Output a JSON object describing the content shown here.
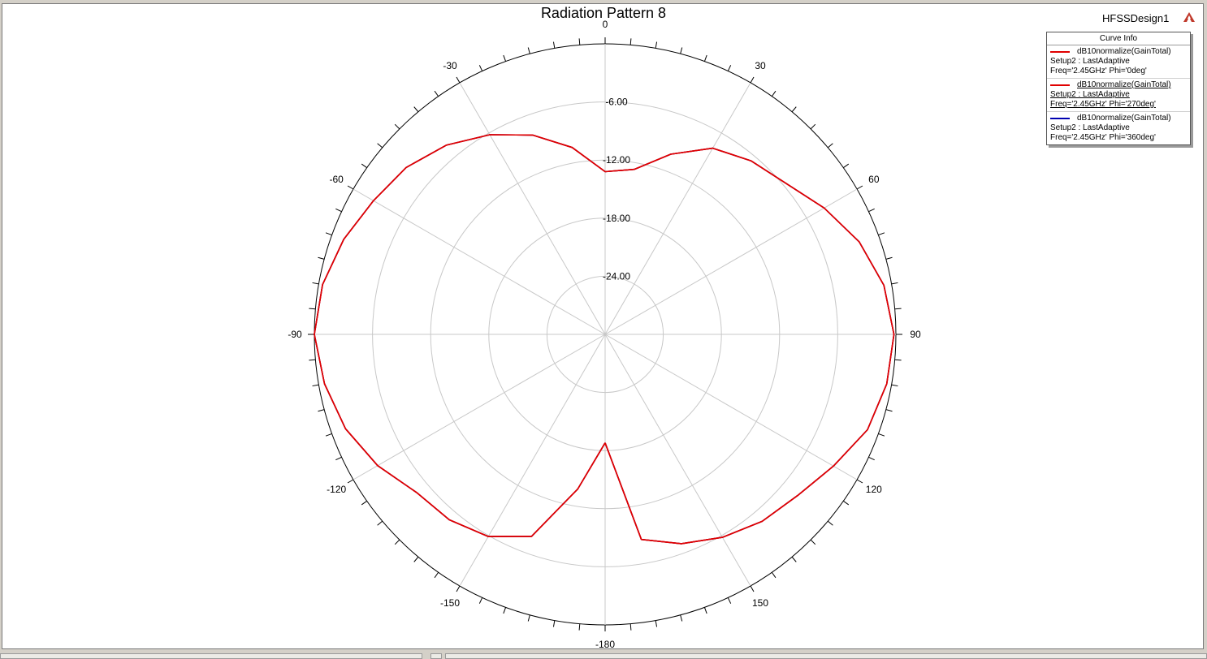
{
  "window": {
    "design_name": "HFSSDesign1"
  },
  "legend": {
    "title": "Curve Info",
    "entries": [
      {
        "line1": "dB10normalize(GainTotal)",
        "line2": "Setup2 : LastAdaptive",
        "line3": "Freq='2.45GHz' Phi='0deg'",
        "color": "#e00000"
      },
      {
        "line1": "dB10normalize(GainTotal)",
        "line2": "Setup2 : LastAdaptive",
        "line3": "Freq='2.45GHz' Phi='270deg'",
        "color": "#e00000"
      },
      {
        "line1": "dB10normalize(GainTotal)",
        "line2": "Setup2 : LastAdaptive",
        "line3": "Freq='2.45GHz' Phi='360deg'",
        "color": "#0000b0"
      }
    ]
  },
  "chart_data": {
    "type": "polar-line",
    "title": "Radiation Pattern 8",
    "radial_range": [
      -30,
      0
    ],
    "radial_ticks": [
      -24,
      -18,
      -12,
      -6,
      0
    ],
    "radial_tick_labels": [
      "-24.00",
      "-18.00",
      "-12.00",
      "-6.00"
    ],
    "angle_labels": [
      "0",
      "30",
      "60",
      "90",
      "120",
      "150",
      "-180",
      "-150",
      "-120",
      "-90",
      "-60",
      "-30"
    ],
    "grid": true,
    "legend_position": "top-right",
    "theta_deg": [
      -180,
      -170,
      -160,
      -150,
      -140,
      -130,
      -120,
      -110,
      -100,
      -90,
      -80,
      -70,
      -60,
      -50,
      -40,
      -30,
      -20,
      -10,
      0,
      10,
      20,
      30,
      40,
      50,
      60,
      70,
      80,
      90,
      100,
      110,
      120,
      130,
      140,
      150,
      160,
      170,
      180
    ],
    "series": [
      {
        "name": "Freq='2.45GHz' Phi='0deg'",
        "color": "#e00000",
        "values": [
          -18.8,
          -13.8,
          -7.8,
          -5.9,
          -5.0,
          -4.6,
          -2.9,
          -1.5,
          -0.6,
          0.0,
          -0.4,
          -1.3,
          -2.4,
          -3.2,
          -4.5,
          -6.2,
          -8.1,
          -10.4,
          -13.2,
          -12.7,
          -10.2,
          -7.8,
          -6.6,
          -5.7,
          -3.9,
          -2.1,
          -0.8,
          -0.2,
          -0.5,
          -1.2,
          -2.8,
          -4.1,
          -4.8,
          -5.8,
          -7.0,
          -8.5,
          -18.8
        ]
      },
      {
        "name": "Freq='2.45GHz' Phi='270deg'",
        "color": "#e00000",
        "values": [
          -18.8,
          -13.8,
          -7.8,
          -5.9,
          -5.0,
          -4.6,
          -2.9,
          -1.5,
          -0.6,
          0.0,
          -0.4,
          -1.3,
          -2.4,
          -3.2,
          -4.5,
          -6.2,
          -8.1,
          -10.4,
          -13.2,
          -12.7,
          -10.2,
          -7.8,
          -6.6,
          -5.7,
          -3.9,
          -2.1,
          -0.8,
          -0.2,
          -0.5,
          -1.2,
          -2.8,
          -4.1,
          -4.8,
          -5.8,
          -7.0,
          -8.5,
          -18.8
        ]
      },
      {
        "name": "Freq='2.45GHz' Phi='360deg'",
        "color": "#0000b0",
        "values": [
          -18.8,
          -13.8,
          -7.8,
          -5.9,
          -5.0,
          -4.6,
          -2.9,
          -1.5,
          -0.6,
          0.0,
          -0.4,
          -1.3,
          -2.4,
          -3.2,
          -4.5,
          -6.2,
          -8.1,
          -10.4,
          -13.2,
          -12.7,
          -10.2,
          -7.8,
          -6.6,
          -5.7,
          -3.9,
          -2.1,
          -0.8,
          -0.2,
          -0.5,
          -1.2,
          -2.8,
          -4.1,
          -4.8,
          -5.8,
          -7.0,
          -8.5,
          -18.8
        ]
      }
    ]
  }
}
